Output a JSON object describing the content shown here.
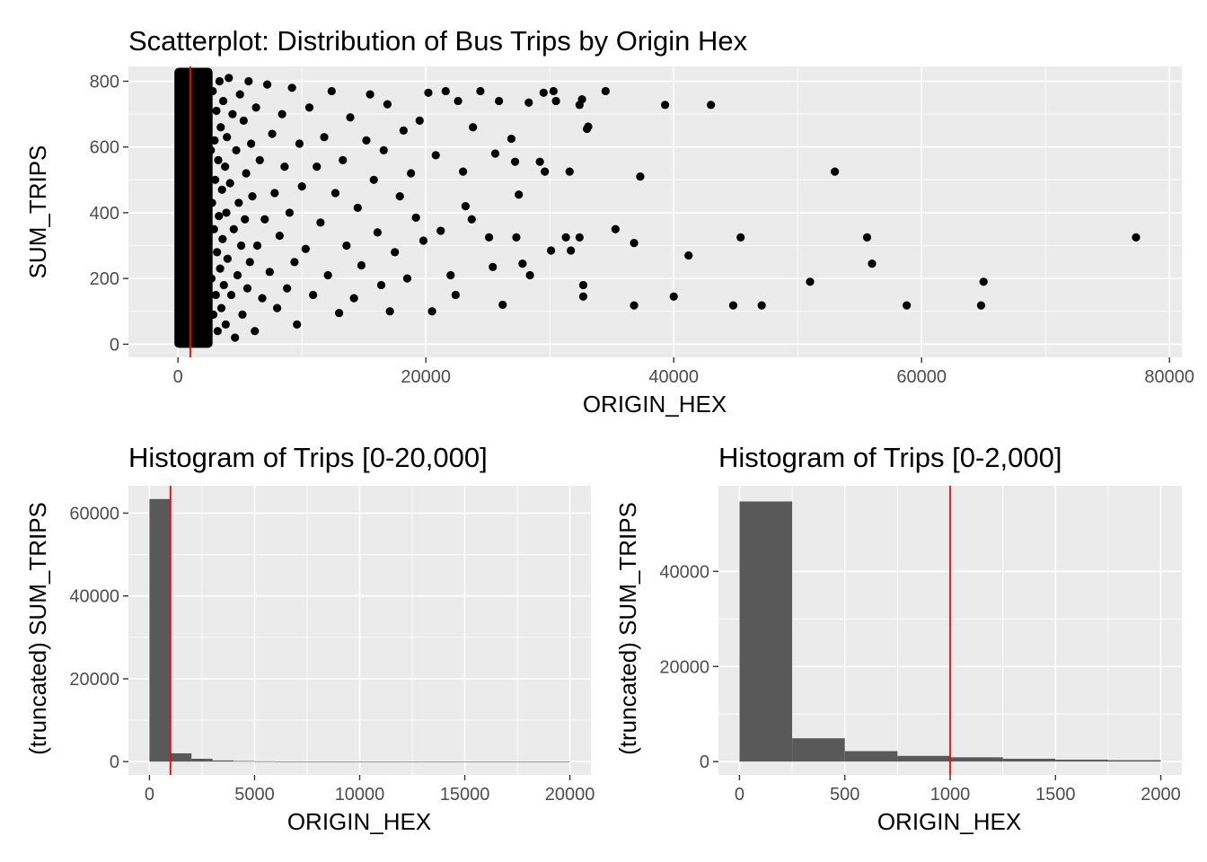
{
  "colors": {
    "panel_background": "#ebebeb",
    "grid": "#ffffff",
    "points": "#000000",
    "bars": "#595959",
    "reference_line": "#ff0000"
  },
  "chart_data": [
    {
      "type": "scatter",
      "title": "Scatterplot: Distribution of Bus Trips by Origin Hex",
      "xlabel": "ORIGIN_HEX",
      "ylabel": "SUM_TRIPS",
      "xlim": [
        -4000,
        81000
      ],
      "ylim": [
        -40,
        845
      ],
      "xticks": [
        0,
        20000,
        40000,
        60000,
        80000
      ],
      "xtick_labels": [
        "0",
        "20000",
        "40000",
        "60000",
        "80000"
      ],
      "yticks": [
        0,
        200,
        400,
        600,
        800
      ],
      "ytick_labels": [
        "0",
        "200",
        "400",
        "600",
        "800"
      ],
      "reference_line_x": 1000,
      "dense_region": {
        "x_range": [
          0,
          2500
        ],
        "y_range": [
          0,
          830
        ]
      },
      "points": [
        [
          77300,
          325
        ],
        [
          65000,
          190
        ],
        [
          64800,
          118
        ],
        [
          58800,
          118
        ],
        [
          56000,
          245
        ],
        [
          55600,
          325
        ],
        [
          53000,
          525
        ],
        [
          51000,
          190
        ],
        [
          47100,
          118
        ],
        [
          45400,
          325
        ],
        [
          44800,
          118
        ],
        [
          43000,
          728
        ],
        [
          41200,
          270
        ],
        [
          40000,
          145
        ],
        [
          39300,
          728
        ],
        [
          37300,
          510
        ],
        [
          36800,
          308
        ],
        [
          36800,
          118
        ],
        [
          35300,
          350
        ],
        [
          34500,
          770
        ],
        [
          33100,
          662
        ],
        [
          33000,
          655
        ],
        [
          32700,
          180
        ],
        [
          32700,
          145
        ],
        [
          32600,
          745
        ],
        [
          32400,
          325
        ],
        [
          32400,
          728
        ],
        [
          31700,
          285
        ],
        [
          31600,
          525
        ],
        [
          31300,
          325
        ],
        [
          30300,
          770
        ],
        [
          30100,
          285
        ],
        [
          30500,
          740
        ],
        [
          29600,
          525
        ],
        [
          29500,
          765
        ],
        [
          29200,
          555
        ],
        [
          28400,
          210
        ],
        [
          28300,
          735
        ],
        [
          27800,
          245
        ],
        [
          27500,
          455
        ],
        [
          27300,
          325
        ],
        [
          27200,
          555
        ],
        [
          26900,
          625
        ],
        [
          26200,
          120
        ],
        [
          25900,
          740
        ],
        [
          25600,
          580
        ],
        [
          25400,
          235
        ],
        [
          25100,
          325
        ],
        [
          24400,
          770
        ],
        [
          23800,
          660
        ],
        [
          23700,
          380
        ],
        [
          23200,
          420
        ],
        [
          23000,
          525
        ],
        [
          22600,
          740
        ],
        [
          22400,
          150
        ],
        [
          22000,
          210
        ],
        [
          21600,
          770
        ],
        [
          21200,
          345
        ],
        [
          20800,
          575
        ],
        [
          20500,
          100
        ],
        [
          20200,
          765
        ],
        [
          19800,
          315
        ],
        [
          19500,
          680
        ],
        [
          19200,
          385
        ],
        [
          18800,
          520
        ],
        [
          18500,
          200
        ],
        [
          18200,
          650
        ],
        [
          17900,
          450
        ],
        [
          17500,
          280
        ],
        [
          17100,
          100
        ],
        [
          16900,
          730
        ],
        [
          16600,
          590
        ],
        [
          16400,
          180
        ],
        [
          16100,
          340
        ],
        [
          15800,
          500
        ],
        [
          15500,
          760
        ],
        [
          15200,
          620
        ],
        [
          14800,
          240
        ],
        [
          14500,
          415
        ],
        [
          14200,
          140
        ],
        [
          13900,
          690
        ],
        [
          13600,
          300
        ],
        [
          13300,
          560
        ],
        [
          13000,
          95
        ],
        [
          12700,
          460
        ],
        [
          12400,
          770
        ],
        [
          12100,
          210
        ],
        [
          11800,
          630
        ],
        [
          11500,
          370
        ],
        [
          11200,
          540
        ],
        [
          10900,
          150
        ],
        [
          10600,
          720
        ],
        [
          10300,
          290
        ],
        [
          10000,
          480
        ],
        [
          9800,
          610
        ],
        [
          9600,
          60
        ],
        [
          9400,
          250
        ],
        [
          9200,
          780
        ],
        [
          9000,
          400
        ],
        [
          8800,
          170
        ],
        [
          8600,
          540
        ],
        [
          8400,
          700
        ],
        [
          8200,
          330
        ],
        [
          8000,
          110
        ],
        [
          7800,
          460
        ],
        [
          7600,
          640
        ],
        [
          7400,
          220
        ],
        [
          7200,
          790
        ],
        [
          7000,
          380
        ],
        [
          6800,
          140
        ],
        [
          6600,
          560
        ],
        [
          6400,
          300
        ],
        [
          6300,
          720
        ],
        [
          6200,
          40
        ],
        [
          6000,
          450
        ],
        [
          5900,
          610
        ],
        [
          5800,
          250
        ],
        [
          5700,
          800
        ],
        [
          5600,
          170
        ],
        [
          5500,
          520
        ],
        [
          5400,
          380
        ],
        [
          5300,
          680
        ],
        [
          5200,
          90
        ],
        [
          5100,
          300
        ],
        [
          5000,
          760
        ],
        [
          4900,
          430
        ],
        [
          4800,
          210
        ],
        [
          4700,
          590
        ],
        [
          4600,
          20
        ],
        [
          4500,
          350
        ],
        [
          4400,
          700
        ],
        [
          4300,
          150
        ],
        [
          4200,
          490
        ],
        [
          4100,
          810
        ],
        [
          4000,
          260
        ],
        [
          3950,
          630
        ],
        [
          3900,
          400
        ],
        [
          3850,
          60
        ],
        [
          3800,
          540
        ],
        [
          3700,
          180
        ],
        [
          3650,
          740
        ],
        [
          3600,
          320
        ],
        [
          3550,
          470
        ],
        [
          3500,
          110
        ],
        [
          3450,
          660
        ],
        [
          3400,
          230
        ],
        [
          3350,
          800
        ],
        [
          3300,
          390
        ],
        [
          3250,
          560
        ],
        [
          3200,
          40
        ],
        [
          3150,
          280
        ],
        [
          3100,
          710
        ],
        [
          3050,
          150
        ],
        [
          3000,
          500
        ],
        [
          2950,
          620
        ],
        [
          2900,
          350
        ],
        [
          2850,
          90
        ],
        [
          2800,
          770
        ],
        [
          2750,
          430
        ],
        [
          2700,
          200
        ],
        [
          2650,
          590
        ]
      ]
    },
    {
      "type": "bar",
      "title": "Histogram of Trips [0-20,000]",
      "xlabel": "ORIGIN_HEX",
      "ylabel": "(truncated) SUM_TRIPS",
      "xlim": [
        -1000,
        21000
      ],
      "ylim": [
        -3200,
        66600
      ],
      "xticks": [
        0,
        5000,
        10000,
        15000,
        20000
      ],
      "xtick_labels": [
        "0",
        "5000",
        "10000",
        "15000",
        "20000"
      ],
      "yticks": [
        0,
        20000,
        40000,
        60000
      ],
      "ytick_labels": [
        "0",
        "20000",
        "40000",
        "60000"
      ],
      "reference_line_x": 1000,
      "bin_width": 1000,
      "bin_starts": [
        0,
        1000,
        2000,
        3000,
        4000,
        5000,
        6000,
        7000,
        8000,
        9000,
        10000,
        11000,
        12000,
        13000,
        14000,
        15000,
        16000,
        17000,
        18000,
        19000
      ],
      "values": [
        63400,
        2000,
        700,
        300,
        150,
        80,
        50,
        30,
        20,
        15,
        10,
        8,
        6,
        5,
        4,
        3,
        3,
        2,
        2,
        1
      ]
    },
    {
      "type": "bar",
      "title": "Histogram of Trips [0-2,000]",
      "xlabel": "ORIGIN_HEX",
      "ylabel": "(truncated) SUM_TRIPS",
      "xlim": [
        -100,
        2100
      ],
      "ylim": [
        -2800,
        58000
      ],
      "xticks": [
        0,
        500,
        1000,
        1500,
        2000
      ],
      "xtick_labels": [
        "0",
        "500",
        "1000",
        "1500",
        "2000"
      ],
      "yticks": [
        0,
        20000,
        40000
      ],
      "ytick_labels": [
        "0",
        "20000",
        "40000"
      ],
      "reference_line_x": 1000,
      "bin_width": 250,
      "bin_starts": [
        0,
        250,
        500,
        750,
        1000,
        1250,
        1500,
        1750
      ],
      "values": [
        54700,
        4900,
        2200,
        1200,
        900,
        600,
        400,
        300
      ]
    }
  ]
}
